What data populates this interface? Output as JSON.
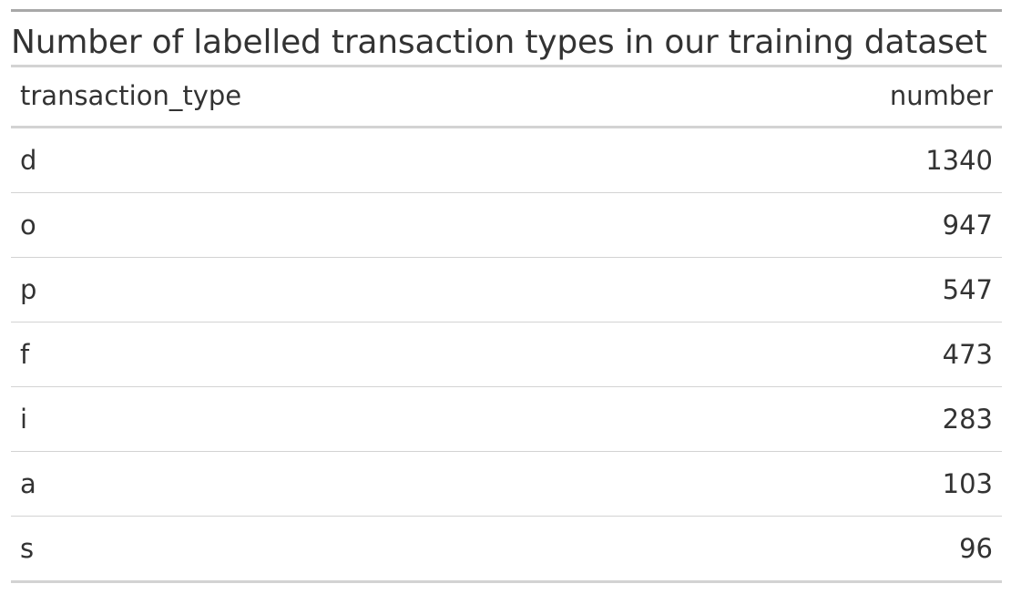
{
  "chart_data": {
    "type": "table",
    "title": "Number of labelled transaction types in our training dataset",
    "columns": [
      "transaction_type",
      "number"
    ],
    "rows": [
      {
        "transaction_type": "d",
        "number": "1340"
      },
      {
        "transaction_type": "o",
        "number": "947"
      },
      {
        "transaction_type": "p",
        "number": "547"
      },
      {
        "transaction_type": "f",
        "number": "473"
      },
      {
        "transaction_type": "i",
        "number": "283"
      },
      {
        "transaction_type": "a",
        "number": "103"
      },
      {
        "transaction_type": "s",
        "number": "96"
      }
    ]
  },
  "colors": {
    "text": "#333333",
    "rule_strong": "#a8a8a8",
    "rule_light": "#d3d3d3"
  }
}
